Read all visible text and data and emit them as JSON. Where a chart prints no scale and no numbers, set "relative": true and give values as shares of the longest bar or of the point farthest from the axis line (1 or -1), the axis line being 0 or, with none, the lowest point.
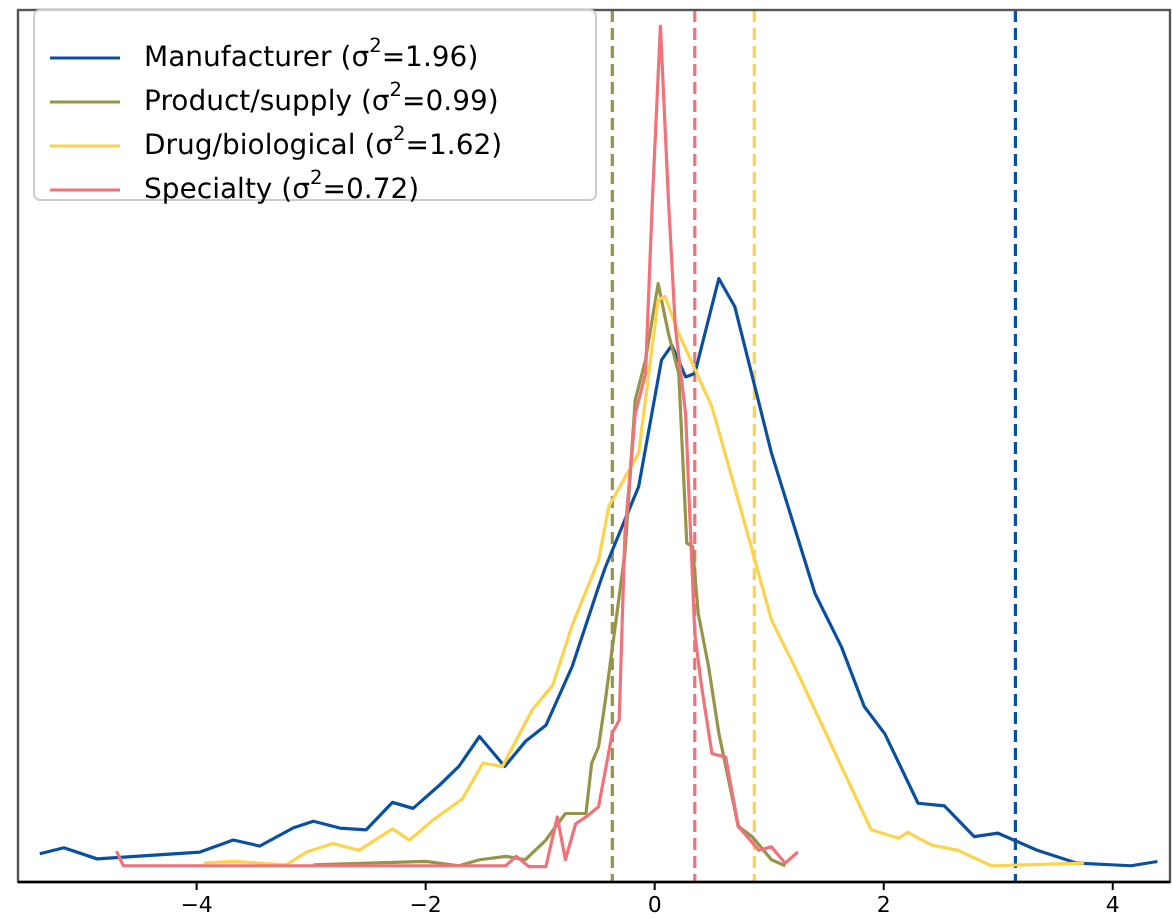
{
  "chart_data": {
    "type": "line",
    "relative": true,
    "legend": "top left",
    "grid": false,
    "line_style": "solid",
    "xlim": [
      -5.56,
      4.5
    ],
    "xticks": [
      {
        "value": -4,
        "label": "−4"
      },
      {
        "value": -2,
        "label": "−2"
      },
      0,
      2,
      4
    ],
    "series": [
      {
        "name": "Manufacturer (σ$^{2}$=1.96)",
        "color": "#0a50a1",
        "x": [
          -5.37,
          -5.16,
          -4.87,
          -3.97,
          -3.68,
          -3.45,
          -3.16,
          -2.98,
          -2.75,
          -2.52,
          -2.29,
          -2.11,
          -1.88,
          -1.71,
          -1.53,
          -1.31,
          -1.13,
          -0.95,
          -0.72,
          -0.49,
          -0.43,
          -0.14,
          0.06,
          0.15,
          0.27,
          0.35,
          0.56,
          0.7,
          1.02,
          1.4,
          1.63,
          1.83,
          2.01,
          2.3,
          2.53,
          2.79,
          3.0,
          3.34,
          3.69,
          4.16,
          4.39
        ],
        "values": [
          0.033,
          0.04,
          0.027,
          0.035,
          0.049,
          0.042,
          0.063,
          0.071,
          0.063,
          0.061,
          0.093,
          0.086,
          0.113,
          0.135,
          0.17,
          0.135,
          0.164,
          0.183,
          0.252,
          0.345,
          0.368,
          0.462,
          0.61,
          0.627,
          0.59,
          0.594,
          0.705,
          0.672,
          0.501,
          0.337,
          0.275,
          0.205,
          0.173,
          0.092,
          0.089,
          0.053,
          0.057,
          0.037,
          0.022,
          0.019,
          0.024
        ]
      },
      {
        "name": "Product/supply (σ$^{2}$=0.99)",
        "color": "#959549",
        "x": [
          -2.98,
          -2.0,
          -1.71,
          -1.53,
          -1.3,
          -1.13,
          -0.95,
          -0.78,
          -0.6,
          -0.55,
          -0.49,
          -0.43,
          -0.26,
          -0.17,
          -0.08,
          0.03,
          0.12,
          0.21,
          0.28,
          0.33,
          0.38,
          0.47,
          0.56,
          0.73,
          0.85,
          1.02,
          1.14
        ],
        "values": [
          0.02,
          0.024,
          0.019,
          0.026,
          0.03,
          0.026,
          0.049,
          0.08,
          0.08,
          0.139,
          0.158,
          0.213,
          0.384,
          0.563,
          0.61,
          0.699,
          0.641,
          0.594,
          0.396,
          0.392,
          0.314,
          0.252,
          0.174,
          0.065,
          0.053,
          0.026,
          0.019
        ]
      },
      {
        "name": "Drug/biological (σ$^{2}$=1.62)",
        "color": "#fdd34d",
        "x": [
          -3.94,
          -3.68,
          -3.22,
          -3.04,
          -2.81,
          -2.58,
          -2.29,
          -2.14,
          -1.94,
          -1.68,
          -1.5,
          -1.33,
          -1.07,
          -0.89,
          -0.72,
          -0.49,
          -0.4,
          -0.14,
          0.03,
          0.09,
          0.21,
          0.5,
          0.73,
          1.02,
          1.25,
          1.55,
          1.89,
          2.13,
          2.21,
          2.42,
          2.65,
          2.94,
          3.75
        ],
        "values": [
          0.022,
          0.024,
          0.02,
          0.035,
          0.045,
          0.037,
          0.062,
          0.049,
          0.072,
          0.097,
          0.139,
          0.135,
          0.201,
          0.23,
          0.3,
          0.376,
          0.439,
          0.501,
          0.68,
          0.684,
          0.641,
          0.555,
          0.446,
          0.306,
          0.244,
          0.158,
          0.061,
          0.051,
          0.058,
          0.043,
          0.037,
          0.019,
          0.022
        ]
      },
      {
        "name": "Specialty (σ$^{2}$=0.72)",
        "color": "#f0727a",
        "x": [
          -4.7,
          -4.64,
          -1.3,
          -1.21,
          -1.1,
          -0.95,
          -0.85,
          -0.78,
          -0.69,
          -0.6,
          -0.49,
          -0.37,
          -0.31,
          -0.26,
          -0.17,
          -0.08,
          -0.02,
          0.05,
          0.12,
          0.18,
          0.27,
          0.35,
          0.41,
          0.5,
          0.62,
          0.73,
          0.91,
          1.02,
          1.14,
          1.25
        ],
        "values": [
          0.036,
          0.019,
          0.019,
          0.03,
          0.018,
          0.018,
          0.076,
          0.026,
          0.068,
          0.076,
          0.088,
          0.174,
          0.189,
          0.407,
          0.547,
          0.594,
          0.797,
          1,
          0.797,
          0.649,
          0.547,
          0.29,
          0.228,
          0.15,
          0.146,
          0.065,
          0.037,
          0.041,
          0.022,
          0.035
        ]
      }
    ],
    "ref_lines": [
      {
        "axis": "x",
        "value": 3.15,
        "label": null,
        "color": "#0a50a1",
        "line_style": "dashed"
      },
      {
        "axis": "x",
        "value": -0.37,
        "label": null,
        "color": "#959549",
        "line_style": "dashed"
      },
      {
        "axis": "x",
        "value": 0.87,
        "label": null,
        "color": "#fdd34d",
        "line_style": "dashed"
      },
      {
        "axis": "x",
        "value": 0.35,
        "label": null,
        "color": "#f0727a",
        "line_style": "dashed"
      }
    ]
  }
}
